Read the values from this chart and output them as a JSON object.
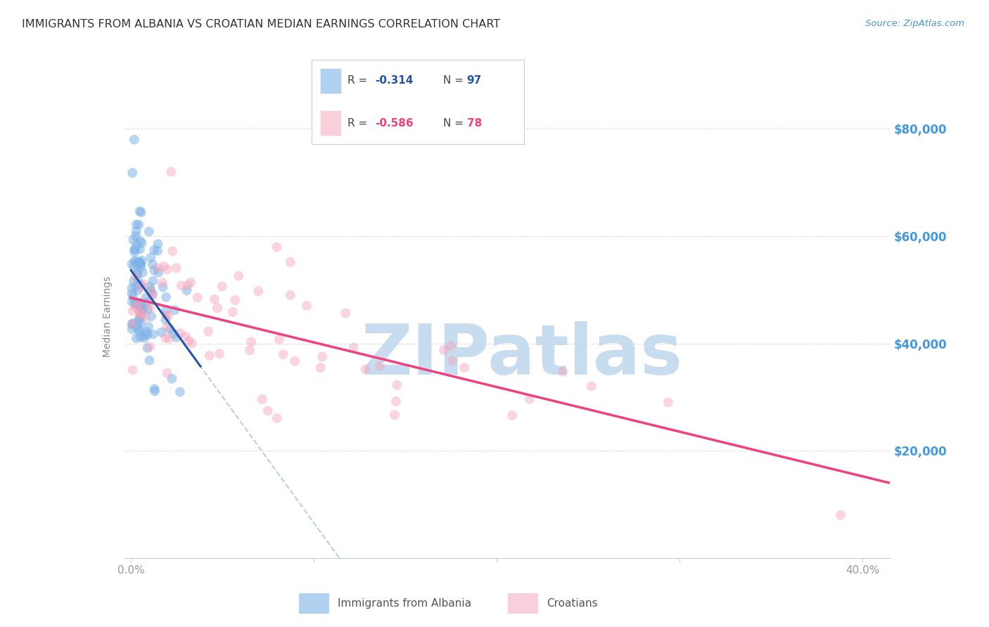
{
  "title": "IMMIGRANTS FROM ALBANIA VS CROATIAN MEDIAN EARNINGS CORRELATION CHART",
  "source": "Source: ZipAtlas.com",
  "ylabel": "Median Earnings",
  "yticks": [
    20000,
    40000,
    60000,
    80000
  ],
  "ytick_labels": [
    "$20,000",
    "$40,000",
    "$60,000",
    "$80,000"
  ],
  "xlim": [
    -0.004,
    0.415
  ],
  "ylim": [
    0,
    90000
  ],
  "plot_ylim": [
    5000,
    88000
  ],
  "albania_R": "-0.314",
  "albania_N": "97",
  "croatia_R": "-0.586",
  "croatia_N": "78",
  "legend_label_1": "Immigrants from Albania",
  "legend_label_2": "Croatians",
  "blue_color": "#7EB3E8",
  "pink_color": "#F4A0B8",
  "blue_line_color": "#2255AA",
  "pink_line_color": "#F04080",
  "blue_dash_color": "#99BBDD",
  "watermark": "ZIPatlas",
  "watermark_color": "#C8DCF0",
  "background_color": "#FFFFFF",
  "title_fontsize": 11.5,
  "axis_tick_color": "#999999",
  "ylabel_color": "#888888",
  "right_tick_color": "#4499DD",
  "source_color": "#4499DD"
}
